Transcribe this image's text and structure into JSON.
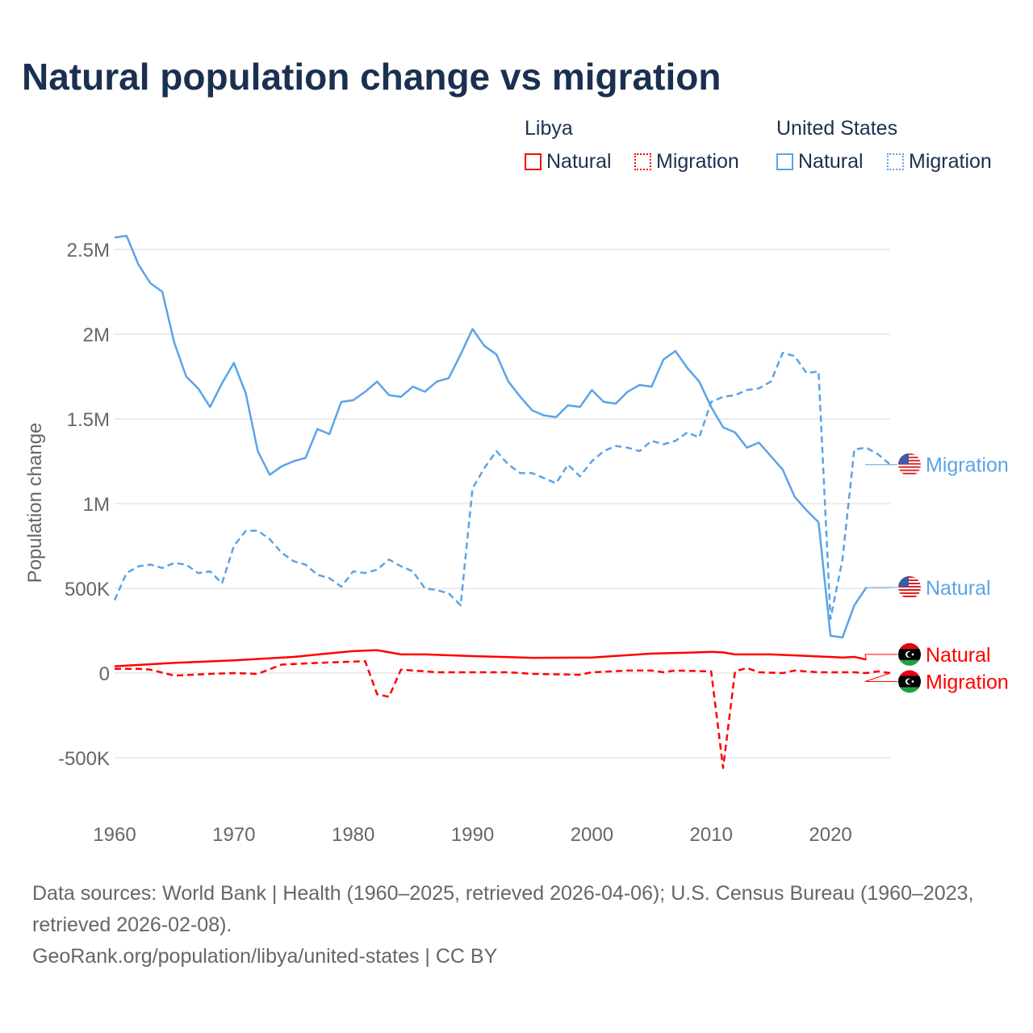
{
  "title": "Natural population change vs migration",
  "legend": {
    "groups": [
      {
        "name": "Libya",
        "items": [
          {
            "label": "Natural",
            "style": "solid"
          },
          {
            "label": "Migration",
            "style": "dotted"
          }
        ],
        "color": "#ff0000"
      },
      {
        "name": "United States",
        "items": [
          {
            "label": "Natural",
            "style": "solid"
          },
          {
            "label": "Migration",
            "style": "dotted"
          }
        ],
        "color": "#5ba3e8"
      }
    ]
  },
  "footer": {
    "sources": "Data sources: World Bank | Health (1960–2025, retrieved 2026-04-06); U.S. Census Bureau (1960–2023, retrieved 2026-02-08).",
    "link": "GeoRank.org/population/libya/united-states | CC BY"
  },
  "chart_data": {
    "type": "line",
    "title": "Natural population change vs migration",
    "xlabel": "",
    "ylabel": "Population change",
    "xlim": [
      1960,
      2025
    ],
    "ylim": [
      -700000,
      2650000
    ],
    "grid": true,
    "x_ticks": [
      {
        "v": 1960,
        "label": "1960"
      },
      {
        "v": 1970,
        "label": "1970"
      },
      {
        "v": 1980,
        "label": "1980"
      },
      {
        "v": 1990,
        "label": "1990"
      },
      {
        "v": 2000,
        "label": "2000"
      },
      {
        "v": 2010,
        "label": "2010"
      },
      {
        "v": 2020,
        "label": "2020"
      }
    ],
    "y_ticks": [
      {
        "v": -500000,
        "label": "-500K"
      },
      {
        "v": 0,
        "label": "0"
      },
      {
        "v": 500000,
        "label": "500K"
      },
      {
        "v": 1000000,
        "label": "1M"
      },
      {
        "v": 1500000,
        "label": "1.5M"
      },
      {
        "v": 2000000,
        "label": "2M"
      },
      {
        "v": 2500000,
        "label": "2.5M"
      }
    ],
    "series": [
      {
        "name": "United States Natural",
        "end_label": "Natural",
        "flag": "us",
        "color": "#5ba3e8",
        "dash": "solid",
        "label_value": 505000,
        "points": [
          [
            1960,
            2570000
          ],
          [
            1961,
            2580000
          ],
          [
            1962,
            2410000
          ],
          [
            1963,
            2300000
          ],
          [
            1964,
            2250000
          ],
          [
            1965,
            1950000
          ],
          [
            1966,
            1750000
          ],
          [
            1967,
            1680000
          ],
          [
            1968,
            1570000
          ],
          [
            1969,
            1710000
          ],
          [
            1970,
            1830000
          ],
          [
            1971,
            1650000
          ],
          [
            1972,
            1310000
          ],
          [
            1973,
            1170000
          ],
          [
            1974,
            1220000
          ],
          [
            1975,
            1250000
          ],
          [
            1976,
            1270000
          ],
          [
            1977,
            1440000
          ],
          [
            1978,
            1410000
          ],
          [
            1979,
            1600000
          ],
          [
            1980,
            1610000
          ],
          [
            1981,
            1660000
          ],
          [
            1982,
            1720000
          ],
          [
            1983,
            1640000
          ],
          [
            1984,
            1630000
          ],
          [
            1985,
            1690000
          ],
          [
            1986,
            1660000
          ],
          [
            1987,
            1720000
          ],
          [
            1988,
            1740000
          ],
          [
            1989,
            1880000
          ],
          [
            1990,
            2030000
          ],
          [
            1991,
            1930000
          ],
          [
            1992,
            1880000
          ],
          [
            1993,
            1720000
          ],
          [
            1994,
            1630000
          ],
          [
            1995,
            1550000
          ],
          [
            1996,
            1520000
          ],
          [
            1997,
            1510000
          ],
          [
            1998,
            1580000
          ],
          [
            1999,
            1570000
          ],
          [
            2000,
            1670000
          ],
          [
            2001,
            1600000
          ],
          [
            2002,
            1590000
          ],
          [
            2003,
            1660000
          ],
          [
            2004,
            1700000
          ],
          [
            2005,
            1690000
          ],
          [
            2006,
            1850000
          ],
          [
            2007,
            1900000
          ],
          [
            2008,
            1800000
          ],
          [
            2009,
            1720000
          ],
          [
            2010,
            1570000
          ],
          [
            2011,
            1450000
          ],
          [
            2012,
            1420000
          ],
          [
            2013,
            1330000
          ],
          [
            2014,
            1360000
          ],
          [
            2015,
            1280000
          ],
          [
            2016,
            1200000
          ],
          [
            2017,
            1040000
          ],
          [
            2018,
            960000
          ],
          [
            2019,
            890000
          ],
          [
            2020,
            220000
          ],
          [
            2021,
            210000
          ],
          [
            2022,
            400000
          ],
          [
            2023,
            505000
          ]
        ]
      },
      {
        "name": "United States Migration",
        "end_label": "Migration",
        "flag": "us",
        "color": "#5ba3e8",
        "dash": "dashed",
        "label_value": 1230000,
        "points": [
          [
            1960,
            430000
          ],
          [
            1961,
            590000
          ],
          [
            1962,
            630000
          ],
          [
            1963,
            640000
          ],
          [
            1964,
            620000
          ],
          [
            1965,
            650000
          ],
          [
            1966,
            640000
          ],
          [
            1967,
            590000
          ],
          [
            1968,
            600000
          ],
          [
            1969,
            530000
          ],
          [
            1970,
            750000
          ],
          [
            1971,
            840000
          ],
          [
            1972,
            840000
          ],
          [
            1973,
            790000
          ],
          [
            1974,
            710000
          ],
          [
            1975,
            660000
          ],
          [
            1976,
            640000
          ],
          [
            1977,
            580000
          ],
          [
            1978,
            560000
          ],
          [
            1979,
            510000
          ],
          [
            1980,
            600000
          ],
          [
            1981,
            590000
          ],
          [
            1982,
            610000
          ],
          [
            1983,
            670000
          ],
          [
            1984,
            630000
          ],
          [
            1985,
            600000
          ],
          [
            1986,
            500000
          ],
          [
            1987,
            490000
          ],
          [
            1988,
            470000
          ],
          [
            1989,
            400000
          ],
          [
            1990,
            1090000
          ],
          [
            1991,
            1210000
          ],
          [
            1992,
            1310000
          ],
          [
            1993,
            1230000
          ],
          [
            1994,
            1180000
          ],
          [
            1995,
            1180000
          ],
          [
            1996,
            1150000
          ],
          [
            1997,
            1120000
          ],
          [
            1998,
            1230000
          ],
          [
            1999,
            1160000
          ],
          [
            2000,
            1250000
          ],
          [
            2001,
            1310000
          ],
          [
            2002,
            1340000
          ],
          [
            2003,
            1330000
          ],
          [
            2004,
            1310000
          ],
          [
            2005,
            1370000
          ],
          [
            2006,
            1350000
          ],
          [
            2007,
            1370000
          ],
          [
            2008,
            1420000
          ],
          [
            2009,
            1390000
          ],
          [
            2010,
            1600000
          ],
          [
            2011,
            1630000
          ],
          [
            2012,
            1640000
          ],
          [
            2013,
            1670000
          ],
          [
            2014,
            1680000
          ],
          [
            2015,
            1720000
          ],
          [
            2016,
            1890000
          ],
          [
            2017,
            1870000
          ],
          [
            2018,
            1770000
          ],
          [
            2019,
            1780000
          ],
          [
            2020,
            320000
          ],
          [
            2021,
            670000
          ],
          [
            2022,
            1320000
          ],
          [
            2023,
            1330000
          ],
          [
            2024,
            1290000
          ],
          [
            2025,
            1230000
          ]
        ]
      },
      {
        "name": "Libya Natural",
        "end_label": "Natural",
        "flag": "ly",
        "color": "#ff0000",
        "dash": "solid",
        "label_value": 110000,
        "points": [
          [
            1960,
            40000
          ],
          [
            1965,
            60000
          ],
          [
            1970,
            75000
          ],
          [
            1975,
            95000
          ],
          [
            1980,
            130000
          ],
          [
            1982,
            135000
          ],
          [
            1984,
            110000
          ],
          [
            1986,
            110000
          ],
          [
            1990,
            100000
          ],
          [
            1995,
            90000
          ],
          [
            2000,
            92000
          ],
          [
            2005,
            115000
          ],
          [
            2008,
            120000
          ],
          [
            2010,
            125000
          ],
          [
            2011,
            122000
          ],
          [
            2012,
            110000
          ],
          [
            2015,
            110000
          ],
          [
            2020,
            95000
          ],
          [
            2021,
            92000
          ],
          [
            2022,
            95000
          ],
          [
            2023,
            80000
          ]
        ]
      },
      {
        "name": "Libya Migration",
        "end_label": "Migration",
        "flag": "ly",
        "color": "#ff0000",
        "dash": "dashed",
        "label_value": -50000,
        "points": [
          [
            1960,
            25000
          ],
          [
            1962,
            25000
          ],
          [
            1963,
            20000
          ],
          [
            1965,
            -15000
          ],
          [
            1968,
            -5000
          ],
          [
            1970,
            0
          ],
          [
            1972,
            -5000
          ],
          [
            1974,
            50000
          ],
          [
            1977,
            60000
          ],
          [
            1981,
            70000
          ],
          [
            1982,
            -125000
          ],
          [
            1983,
            -140000
          ],
          [
            1984,
            20000
          ],
          [
            1987,
            5000
          ],
          [
            1990,
            5000
          ],
          [
            1993,
            5000
          ],
          [
            1995,
            -5000
          ],
          [
            1999,
            -10000
          ],
          [
            2000,
            5000
          ],
          [
            2003,
            15000
          ],
          [
            2005,
            15000
          ],
          [
            2006,
            5000
          ],
          [
            2007,
            15000
          ],
          [
            2010,
            10000
          ],
          [
            2011,
            -560000
          ],
          [
            2012,
            10000
          ],
          [
            2013,
            30000
          ],
          [
            2014,
            5000
          ],
          [
            2016,
            0
          ],
          [
            2017,
            15000
          ],
          [
            2019,
            5000
          ],
          [
            2022,
            5000
          ],
          [
            2023,
            0
          ],
          [
            2024,
            10000
          ],
          [
            2025,
            0
          ]
        ]
      }
    ]
  }
}
